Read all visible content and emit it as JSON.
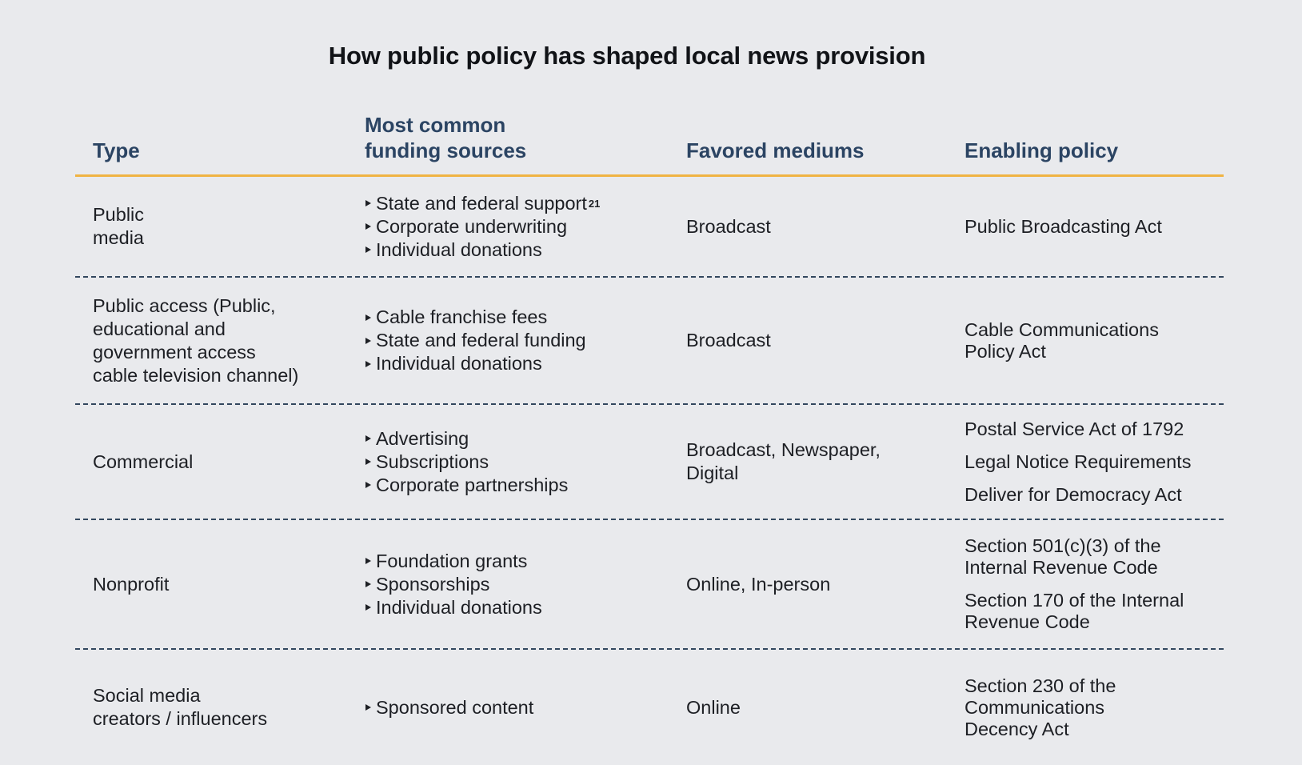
{
  "title": "How public policy has shaped local news provision",
  "headers": {
    "type": "Type",
    "funding_line1": "Most common",
    "funding_line2": "funding sources",
    "mediums": "Favored mediums",
    "policy": "Enabling policy"
  },
  "rows": [
    {
      "type": "Public\nmedia",
      "funding": [
        "State and federal support",
        "Corporate underwriting",
        "Individual donations"
      ],
      "footnote": "21",
      "mediums": "Broadcast",
      "policies": [
        "Public Broadcasting Act"
      ]
    },
    {
      "type": "Public access (Public,\neducational and\ngovernment access\ncable television channel)",
      "funding": [
        "Cable franchise fees",
        "State and federal funding",
        "Individual donations"
      ],
      "mediums": "Broadcast",
      "policies": [
        "Cable Communications\nPolicy Act"
      ]
    },
    {
      "type": "Commercial",
      "funding": [
        "Advertising",
        "Subscriptions",
        "Corporate partnerships"
      ],
      "mediums": "Broadcast, Newspaper,\nDigital",
      "policies": [
        "Postal Service Act of 1792",
        "Legal Notice Requirements",
        "Deliver for Democracy Act"
      ]
    },
    {
      "type": "Nonprofit",
      "funding": [
        "Foundation grants",
        "Sponsorships",
        "Individual donations"
      ],
      "mediums": "Online, In-person",
      "policies": [
        "Section 501(c)(3) of the\nInternal Revenue Code",
        "Section 170 of the Internal\nRevenue Code"
      ]
    },
    {
      "type": "Social media\ncreators / influencers",
      "funding": [
        "Sponsored content"
      ],
      "mediums": "Online",
      "policies": [
        "Section 230 of the\nCommunications\nDecency Act"
      ]
    }
  ]
}
